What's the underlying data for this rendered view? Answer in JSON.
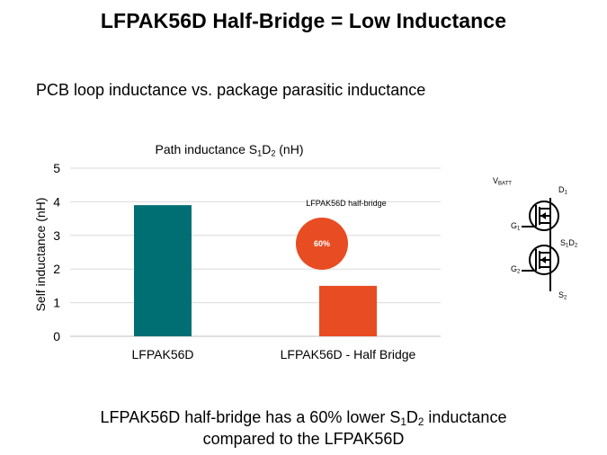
{
  "slide": {
    "title": "LFPAK56D Half-Bridge = Low Inductance",
    "subtitle": "PCB loop inductance vs. package parasitic inductance",
    "conclusion": {
      "line1_pre": "LFPAK56D half-bridge has a 60% lower S",
      "sub1": "1",
      "mid": "D",
      "sub2": "2",
      "line1_post": " inductance",
      "line2": "compared to the LFPAK56D"
    }
  },
  "chart_data": {
    "type": "bar",
    "title_pre": "Path inductance S",
    "title_sub1": "1",
    "title_mid": "D",
    "title_sub2": "2",
    "title_post": " (nH)",
    "ylabel": "Self inductance (nH)",
    "xlabel": "",
    "ylim": [
      0,
      5
    ],
    "yticks": [
      0,
      1,
      2,
      3,
      4,
      5
    ],
    "categories": [
      "LFPAK56D",
      "LFPAK56D - Half Bridge"
    ],
    "values": [
      3.9,
      1.5
    ],
    "colors": [
      "#006f73",
      "#e84c22"
    ],
    "annotation": {
      "label": "LFPAK56D  half-bridge",
      "badge": "60%",
      "badge_color": "#e84c22"
    },
    "grid": true
  },
  "schematic": {
    "vbatt": "V",
    "vbatt_sub": "BATT",
    "d1": "D",
    "d1_sub": "1",
    "g1": "G",
    "g1_sub": "1",
    "s1d2_a": "S",
    "s1d2_sub1": "1",
    "s1d2_b": "D",
    "s1d2_sub2": "2",
    "g2": "G",
    "g2_sub": "2",
    "s2": "S",
    "s2_sub": "2"
  }
}
